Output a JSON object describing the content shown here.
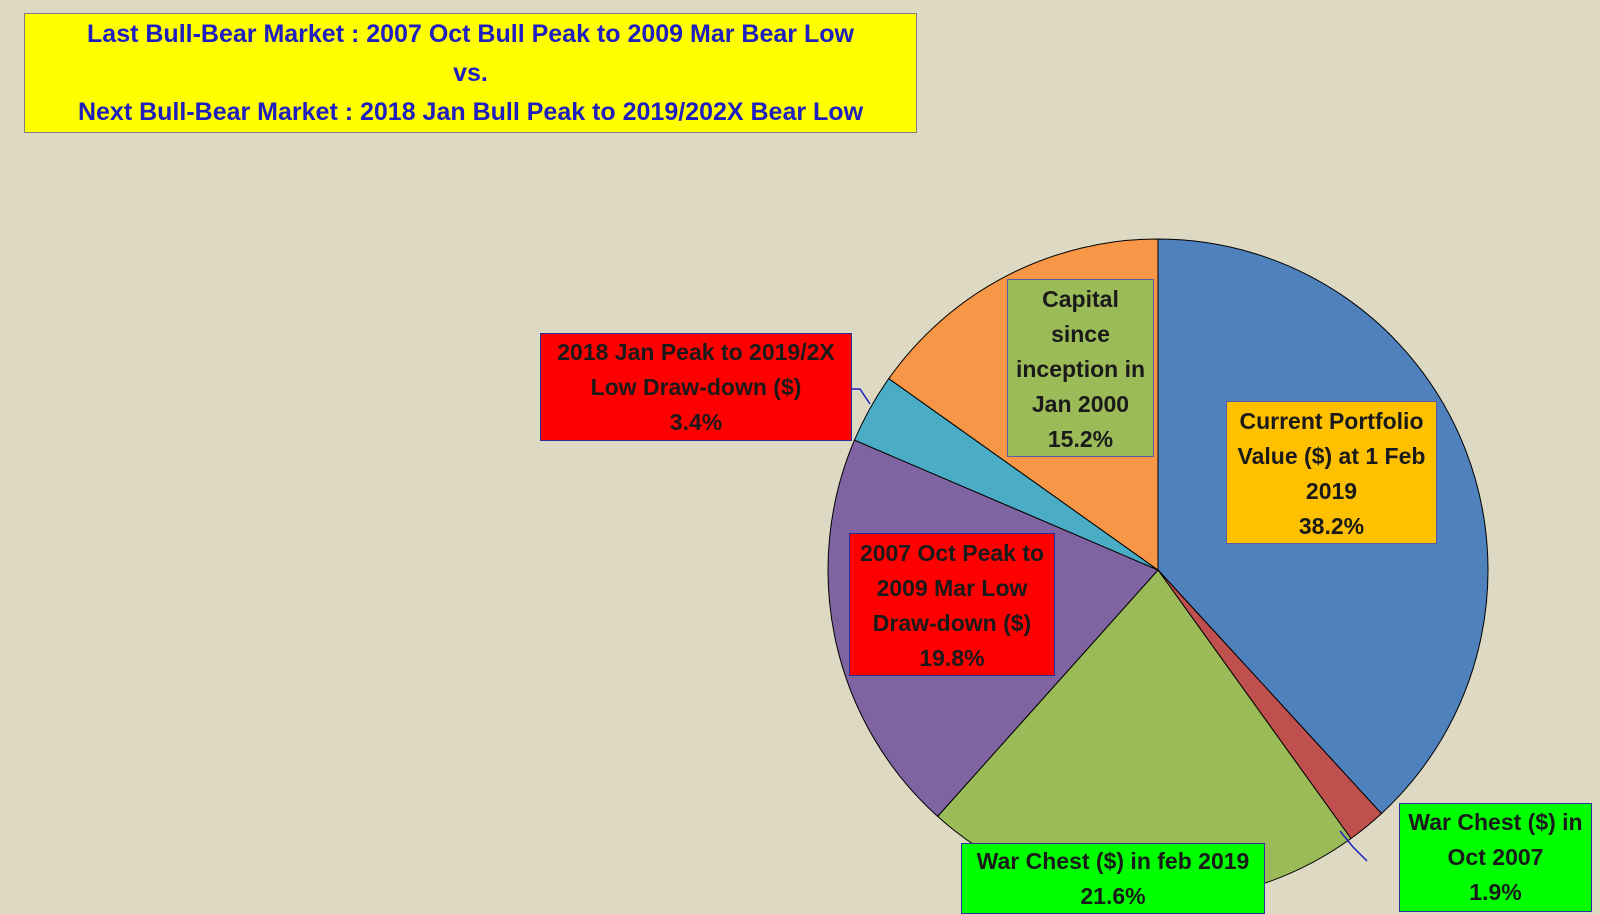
{
  "title": {
    "line1": "Last Bull-Bear Market : 2007 Oct Bull Peak to 2009 Mar Bear Low",
    "line2": "vs.",
    "line3": "Next Bull-Bear Market : 2018 Jan Bull Peak to 2019/202X Bear Low"
  },
  "chart_data": {
    "type": "pie",
    "slices": [
      {
        "label_lines": [
          "Current Portfolio",
          "Value ($) at 1 Feb",
          "2019"
        ],
        "percent_text": "38.2%",
        "value": 38.2,
        "color": "#4f81bd"
      },
      {
        "label_lines": [
          "War Chest ($) in",
          "Oct 2007"
        ],
        "percent_text": "1.9%",
        "value": 1.9,
        "color": "#c0504d"
      },
      {
        "label_lines": [
          "War Chest ($) in feb 2019"
        ],
        "percent_text": "21.6%",
        "value": 21.6,
        "color": "#9bbb59"
      },
      {
        "label_lines": [
          "2007 Oct Peak to",
          "2009 Mar Low",
          "Draw-down ($)"
        ],
        "percent_text": "19.8%",
        "value": 19.8,
        "color": "#8064a2"
      },
      {
        "label_lines": [
          "2018 Jan Peak to 2019/2X",
          "Low Draw-down ($)"
        ],
        "percent_text": "3.4%",
        "value": 3.4,
        "color": "#4bacc6"
      },
      {
        "label_lines": [
          "Capital",
          "since",
          "inception in",
          "Jan 2000"
        ],
        "percent_text": "15.2%",
        "value": 15.2,
        "color": "#f79646"
      }
    ],
    "start_angle_deg": 0,
    "direction": "clockwise",
    "legend": "none"
  }
}
